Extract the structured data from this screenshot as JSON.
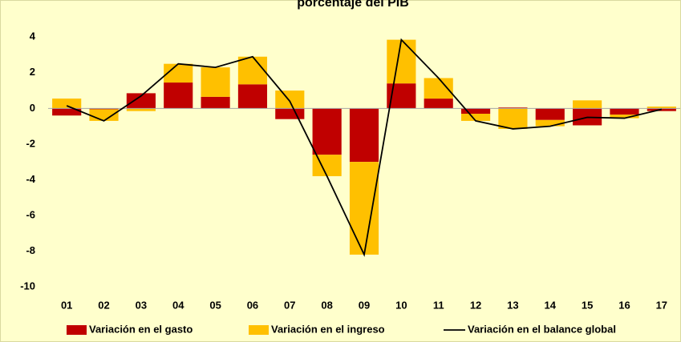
{
  "chart_data": {
    "type": "bar",
    "stacked": true,
    "title": "porcentaje del PIB",
    "categories": [
      "01",
      "02",
      "03",
      "04",
      "05",
      "06",
      "07",
      "08",
      "09",
      "10",
      "11",
      "12",
      "13",
      "14",
      "15",
      "16",
      "17"
    ],
    "series": [
      {
        "name": "Variación en el gasto",
        "type": "bar",
        "color": "#C00000",
        "values": [
          -0.4,
          -0.05,
          0.85,
          1.45,
          0.65,
          1.35,
          -0.6,
          -2.6,
          -3.0,
          1.4,
          0.55,
          -0.3,
          0.05,
          -0.65,
          -0.95,
          -0.35,
          -0.15
        ]
      },
      {
        "name": "Variación en el ingreso",
        "type": "bar",
        "color": "#FFC000",
        "values": [
          0.55,
          -0.65,
          -0.15,
          1.05,
          1.65,
          1.55,
          1.0,
          -1.2,
          -5.2,
          2.45,
          1.15,
          -0.4,
          -1.15,
          -0.35,
          0.45,
          -0.2,
          0.1
        ]
      },
      {
        "name": "Variación en el balance global",
        "type": "line",
        "color": "#000000",
        "values": [
          0.15,
          -0.7,
          0.7,
          2.5,
          2.3,
          2.9,
          0.4,
          -3.8,
          -8.2,
          3.85,
          1.7,
          -0.7,
          -1.15,
          -1.0,
          -0.5,
          -0.55,
          -0.05
        ]
      }
    ],
    "ylim": [
      -10,
      5
    ],
    "yticks": [
      -10,
      -8,
      -6,
      -4,
      -2,
      0,
      2,
      4
    ],
    "grid": false,
    "legend": "bottom"
  }
}
